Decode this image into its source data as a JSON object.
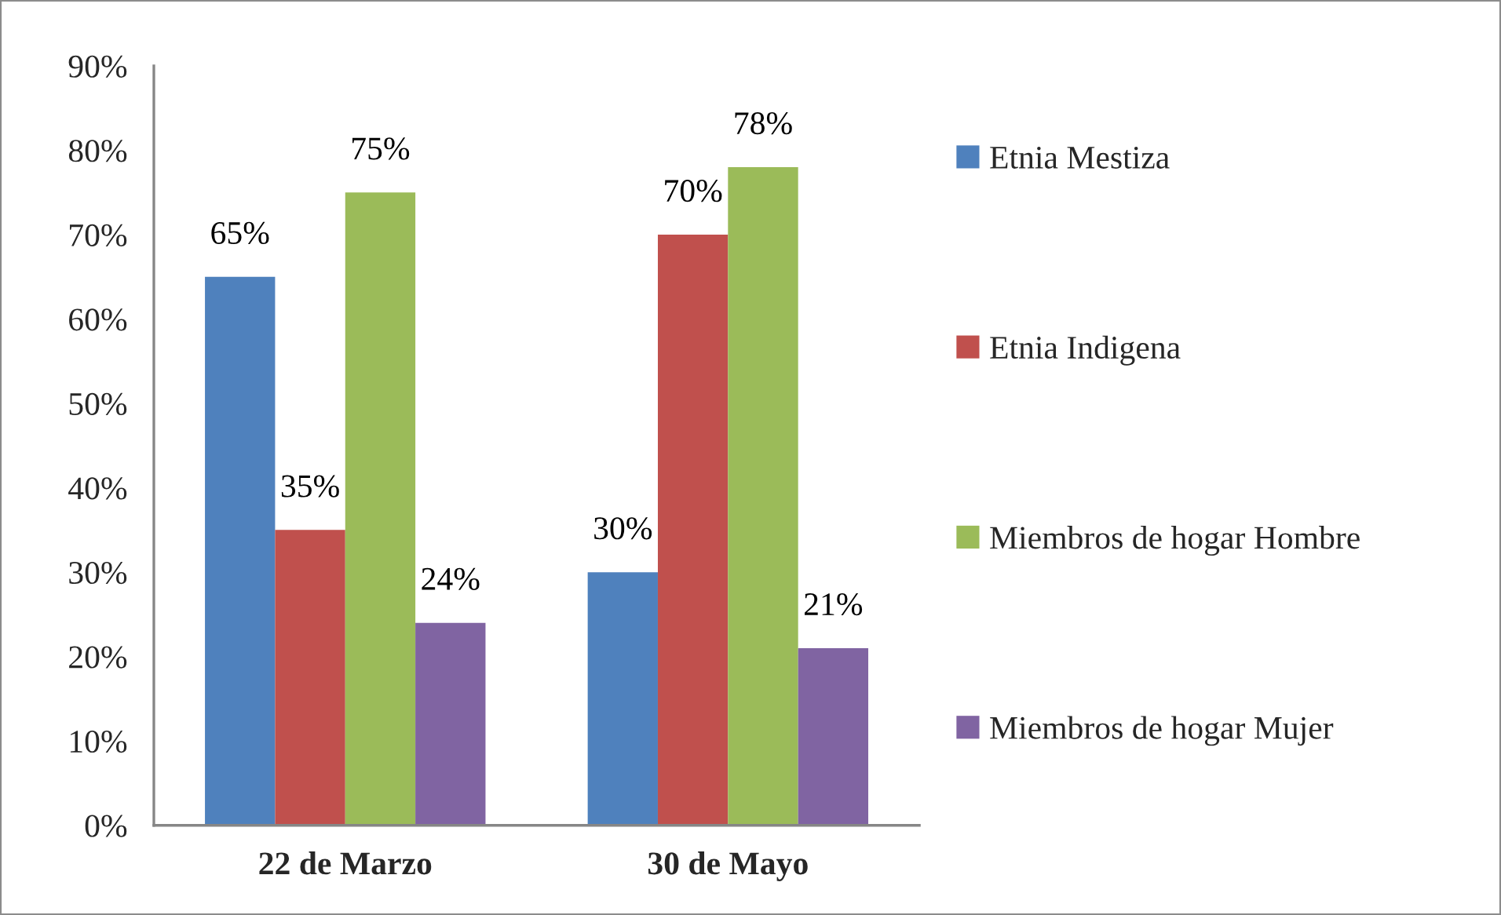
{
  "chart_data": {
    "type": "bar",
    "categories": [
      "22 de Marzo",
      "30 de Mayo"
    ],
    "series": [
      {
        "name": "Etnia Mestiza",
        "color": "#4f81bd",
        "values": [
          65,
          30
        ],
        "value_labels": [
          "65%",
          "30%"
        ]
      },
      {
        "name": "Etnia Indigena",
        "color": "#c0504d",
        "values": [
          35,
          70
        ],
        "value_labels": [
          "35%",
          "70%"
        ]
      },
      {
        "name": "Miembros de hogar Hombre",
        "color": "#9bbb59",
        "values": [
          75,
          78
        ],
        "value_labels": [
          "75%",
          "78%"
        ]
      },
      {
        "name": "Miembros de hogar Mujer",
        "color": "#8064a2",
        "values": [
          24,
          21
        ],
        "value_labels": [
          "24%",
          "21%"
        ]
      }
    ],
    "ylim": [
      0,
      90
    ],
    "yticks": [
      {
        "value": 0,
        "label": "0%"
      },
      {
        "value": 10,
        "label": "10%"
      },
      {
        "value": 20,
        "label": "20%"
      },
      {
        "value": 30,
        "label": "30%"
      },
      {
        "value": 40,
        "label": "40%"
      },
      {
        "value": 50,
        "label": "50%"
      },
      {
        "value": 60,
        "label": "60%"
      },
      {
        "value": 70,
        "label": "70%"
      },
      {
        "value": 80,
        "label": "80%"
      },
      {
        "value": 90,
        "label": "90%"
      }
    ],
    "grid": false,
    "legend": "right"
  }
}
